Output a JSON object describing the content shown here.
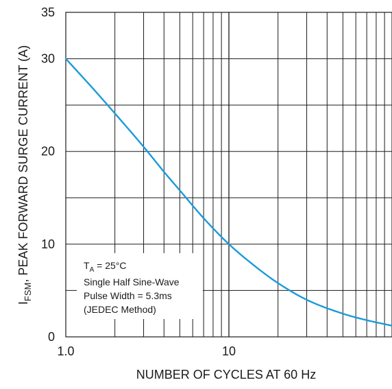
{
  "chart_data": {
    "type": "line",
    "title": "",
    "xlabel": "NUMBER OF CYCLES AT 60 Hz",
    "ylabel": {
      "symbol": "I",
      "subscript": "FSM",
      "text": ", PEAK FORWARD SURGE CURRENT (A)"
    },
    "x_scale": "log",
    "xlim": [
      1,
      100
    ],
    "ylim": [
      0,
      35
    ],
    "grid": true,
    "x_tick_labels": [
      {
        "value": 1,
        "label": "1.0"
      },
      {
        "value": 10,
        "label": "10"
      }
    ],
    "y_tick_labels": [
      {
        "value": 0,
        "label": "0"
      },
      {
        "value": 10,
        "label": "10"
      },
      {
        "value": 20,
        "label": "20"
      },
      {
        "value": 30,
        "label": "30"
      },
      {
        "value": 35,
        "label": "35"
      }
    ],
    "y_gridlines": [
      5,
      10,
      15,
      20,
      25,
      30
    ],
    "series": [
      {
        "color": "#1a9ad9",
        "x": [
          1,
          1.5,
          2,
          3,
          4,
          5,
          7,
          10,
          15,
          20,
          30,
          50,
          70,
          100
        ],
        "y": [
          30,
          26.6,
          24.1,
          20.5,
          17.8,
          15.8,
          12.8,
          10,
          7.4,
          5.8,
          4.0,
          2.5,
          1.8,
          1.2
        ]
      }
    ],
    "annotation": {
      "lines": [
        {
          "symbol": "T",
          "subscript": "A",
          "text": " = 25°C"
        },
        {
          "text": "Single Half Sine-Wave"
        },
        {
          "text": "Pulse Width = 5.3ms"
        },
        {
          "text": "(JEDEC Method)"
        }
      ]
    }
  },
  "colors": {
    "grid": "#1a1a1a",
    "curve": "#1a9ad9",
    "text": "#1a1a1a"
  }
}
